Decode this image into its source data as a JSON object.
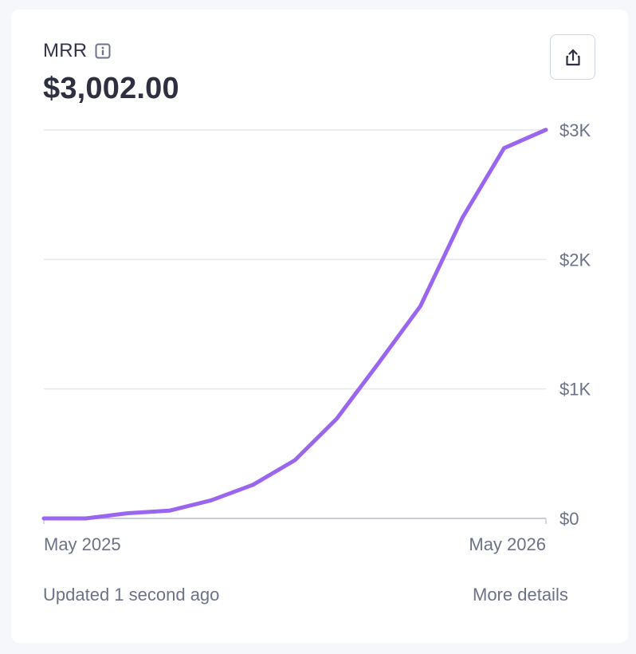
{
  "metric": {
    "title": "MRR",
    "value": "$3,002.00"
  },
  "share_icon": "share-icon",
  "info_icon": "info-icon",
  "footer": {
    "updated": "Updated 1 second ago",
    "more_details": "More details"
  },
  "colors": {
    "line": "#9a66f0",
    "grid": "#e5e7ee",
    "axis": "#c8ccd8",
    "text": "#6c7287",
    "title": "#333447"
  },
  "chart_data": {
    "type": "line",
    "x": [
      "2025-05",
      "2025-06",
      "2025-07",
      "2025-08",
      "2025-09",
      "2025-10",
      "2025-11",
      "2025-12",
      "2026-01",
      "2026-02",
      "2026-03",
      "2026-04",
      "2026-05"
    ],
    "series": [
      {
        "values": [
          0,
          0,
          40,
          60,
          140,
          260,
          450,
          770,
          1200,
          1640,
          2320,
          2860,
          3002
        ]
      }
    ],
    "x_tick_labels": [
      "May 2025",
      "May 2026"
    ],
    "y_ticks": [
      0,
      1000,
      2000,
      3000
    ],
    "y_tick_labels": [
      "$0",
      "$1K",
      "$2K",
      "$3K"
    ],
    "ylim": [
      0,
      3000
    ],
    "grid": true,
    "legend": "none"
  }
}
